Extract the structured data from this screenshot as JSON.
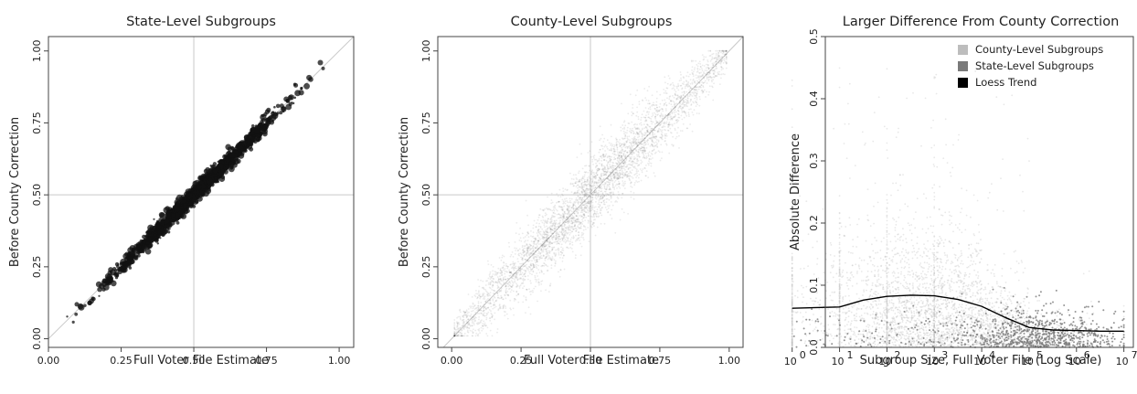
{
  "chart_data": [
    {
      "type": "scatter",
      "title": "State-Level Subgroups",
      "xlabel": "Full Voter File Estimate",
      "ylabel": "Before County Correction",
      "xlim": [
        0,
        1.05
      ],
      "ylim": [
        -0.03,
        1.05
      ],
      "xticks": [
        "0.00",
        "0.25",
        "0.50",
        "0.75",
        "1.00"
      ],
      "yticks": [
        "0.00",
        "0.25",
        "0.50",
        "0.75",
        "1.00"
      ],
      "reference_lines": {
        "vertical": 0.5,
        "horizontal": 0.5,
        "diagonal": true
      },
      "point_color": "#111111",
      "description_points": {
        "x_range": [
          0.03,
          0.98
        ],
        "spread_sd": 0.015
      }
    },
    {
      "type": "scatter",
      "title": "County-Level Subgroups",
      "xlabel": "Full Voter File Estimate",
      "ylabel": "Before County Correction",
      "xlim": [
        -0.05,
        1.05
      ],
      "ylim": [
        -0.03,
        1.05
      ],
      "xticks": [
        "0.00",
        "0.25",
        "0.50",
        "0.75",
        "1.00"
      ],
      "yticks": [
        "0.00",
        "0.25",
        "0.50",
        "0.75",
        "1.00"
      ],
      "reference_lines": {
        "vertical": 0.5,
        "horizontal": 0.5,
        "diagonal": true
      },
      "point_color": "#222222",
      "description_points": {
        "x_range": [
          0.01,
          0.99
        ],
        "spread_sd": 0.04
      }
    },
    {
      "type": "scatter",
      "title": "Larger Difference From County Correction",
      "xlabel": "Subgroup Size, Full Voter File (Log Scale)",
      "ylabel": "Absolute Difference",
      "x_scale": "log10",
      "xlim": [
        0.7,
        7.2
      ],
      "ylim": [
        0,
        0.5
      ],
      "xticks": [
        {
          "base": "10",
          "exp": "0"
        },
        {
          "base": "10",
          "exp": "1"
        },
        {
          "base": "10",
          "exp": "2"
        },
        {
          "base": "10",
          "exp": "3"
        },
        {
          "base": "10",
          "exp": "4"
        },
        {
          "base": "10",
          "exp": "5"
        },
        {
          "base": "10",
          "exp": "6"
        },
        {
          "base": "10",
          "exp": "7"
        }
      ],
      "yticks": [
        "0.0",
        "0.1",
        "0.2",
        "0.3",
        "0.4",
        "0.5"
      ],
      "legend": {
        "position": "top-right",
        "entries": [
          {
            "label": "County-Level Subgroups",
            "color": "#bdbdbd"
          },
          {
            "label": "State-Level Subgroups",
            "color": "#7a7a7a"
          },
          {
            "label": "Loess Trend",
            "color": "#000000"
          }
        ]
      },
      "loess_trend": {
        "x_log10": [
          1,
          1.5,
          2,
          2.5,
          3,
          3.5,
          4,
          4.5,
          5,
          5.5,
          6,
          6.5,
          7
        ],
        "y": [
          0.065,
          0.076,
          0.082,
          0.084,
          0.083,
          0.077,
          0.066,
          0.048,
          0.032,
          0.028,
          0.027,
          0.026,
          0.026
        ]
      }
    }
  ]
}
